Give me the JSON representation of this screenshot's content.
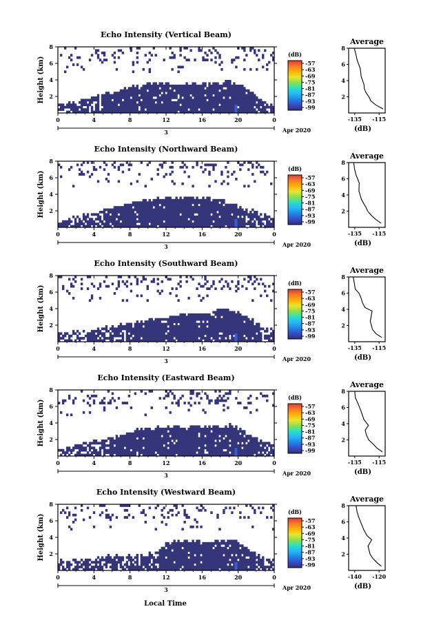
{
  "colors": {
    "echo_fill": "#35357a",
    "echo_highlight": "#3b5bd6",
    "colorbar": [
      "#323278",
      "#3a4ac8",
      "#1e88e5",
      "#29b6f6",
      "#26e0c8",
      "#8be04e",
      "#e6e632",
      "#ffb300",
      "#f57c2a",
      "#e53935"
    ]
  },
  "x_axis_label": "Local Time",
  "panels": [
    {
      "title": "Echo Intensity (Vertical Beam)",
      "ylabel": "Height (km)",
      "date_label": "Apr 2020",
      "x_day_label": "3",
      "x_ticks": [
        "0",
        "4",
        "8",
        "12",
        "16",
        "20",
        "0"
      ],
      "y_ticks": [
        "2",
        "4",
        "6",
        "8"
      ],
      "cb_unit": "(dB)",
      "cb_ticks": [
        "-57",
        "-63",
        "-69",
        "-75",
        "-81",
        "-87",
        "-93",
        "-99"
      ],
      "avg": {
        "title": "Average",
        "xlabel": "(dB)",
        "x_ticks": [
          "-135",
          "-115"
        ],
        "y_ticks": [
          "2",
          "4",
          "6",
          "8"
        ]
      }
    },
    {
      "title": "Echo Intensity (Northward Beam)",
      "ylabel": "Height (km)",
      "date_label": "Apr 2020",
      "x_day_label": "3",
      "x_ticks": [
        "0",
        "4",
        "8",
        "12",
        "16",
        "20",
        "0"
      ],
      "y_ticks": [
        "2",
        "4",
        "6",
        "8"
      ],
      "cb_unit": "(dB)",
      "cb_ticks": [
        "-57",
        "-63",
        "-69",
        "-75",
        "-81",
        "-87",
        "-93",
        "-99"
      ],
      "avg": {
        "title": "Average",
        "xlabel": "(dB)",
        "x_ticks": [
          "-135",
          "-115"
        ],
        "y_ticks": [
          "2",
          "4",
          "6",
          "8"
        ]
      }
    },
    {
      "title": "Echo Intensity (Southward Beam)",
      "ylabel": "Height (km)",
      "date_label": "Apr 2020",
      "x_day_label": "3",
      "x_ticks": [
        "0",
        "4",
        "8",
        "12",
        "16",
        "20",
        "0"
      ],
      "y_ticks": [
        "2",
        "4",
        "6",
        "8"
      ],
      "cb_unit": "(dB)",
      "cb_ticks": [
        "-57",
        "-63",
        "-69",
        "-75",
        "-81",
        "-87",
        "-93",
        "-99"
      ],
      "avg": {
        "title": "Average",
        "xlabel": "(dB)",
        "x_ticks": [
          "-135",
          "-115"
        ],
        "y_ticks": [
          "2",
          "4",
          "6",
          "8"
        ]
      }
    },
    {
      "title": "Echo Intensity (Eastward Beam)",
      "ylabel": "Height (km)",
      "date_label": "Apr 2020",
      "x_day_label": "3",
      "x_ticks": [
        "0",
        "4",
        "8",
        "12",
        "16",
        "20",
        "0"
      ],
      "y_ticks": [
        "2",
        "4",
        "6",
        "8"
      ],
      "cb_unit": "(dB)",
      "cb_ticks": [
        "-57",
        "-63",
        "-69",
        "-75",
        "-81",
        "-87",
        "-93",
        "-99"
      ],
      "avg": {
        "title": "Average",
        "xlabel": "(dB)",
        "x_ticks": [
          "-135",
          "-115"
        ],
        "y_ticks": [
          "2",
          "4",
          "6",
          "8"
        ]
      }
    },
    {
      "title": "Echo Intensity (Westward Beam)",
      "ylabel": "Height (km)",
      "date_label": "Apr 2020",
      "x_day_label": "3",
      "x_ticks": [
        "0",
        "4",
        "8",
        "12",
        "16",
        "20",
        "0"
      ],
      "y_ticks": [
        "2",
        "4",
        "6",
        "8"
      ],
      "cb_unit": "(dB)",
      "cb_ticks": [
        "-57",
        "-63",
        "-69",
        "-75",
        "-81",
        "-87",
        "-93",
        "-99"
      ],
      "avg": {
        "title": "Average",
        "xlabel": "(dB)",
        "x_ticks": [
          "-140",
          "-120"
        ],
        "y_ticks": [
          "2",
          "4",
          "6",
          "8"
        ]
      }
    }
  ],
  "chart_data": [
    {
      "type": "heatmap",
      "title": "Echo Intensity (Vertical Beam)",
      "xlabel": "",
      "ylabel": "Height (km)",
      "xlim": [
        0,
        24
      ],
      "ylim": [
        0,
        8
      ],
      "colorbar": {
        "unit": "(dB)",
        "range": [
          -99,
          -57
        ]
      },
      "echo_top_km": [
        [
          0,
          1.2
        ],
        [
          1,
          1.3
        ],
        [
          2,
          1.4
        ],
        [
          3,
          1.8
        ],
        [
          4,
          2.0
        ],
        [
          5,
          2.4
        ],
        [
          6,
          2.6
        ],
        [
          7,
          2.8
        ],
        [
          8,
          3.2
        ],
        [
          9,
          3.4
        ],
        [
          10,
          3.5
        ],
        [
          11,
          3.6
        ],
        [
          12,
          3.6
        ],
        [
          13,
          3.6
        ],
        [
          14,
          3.6
        ],
        [
          15,
          3.6
        ],
        [
          16,
          3.6
        ],
        [
          17,
          3.6
        ],
        [
          18,
          3.7
        ],
        [
          19,
          3.8
        ],
        [
          20,
          3.6
        ],
        [
          21,
          3.0
        ],
        [
          22,
          2.0
        ],
        [
          23,
          1.5
        ],
        [
          24,
          1.3
        ]
      ]
    },
    {
      "type": "line",
      "title": "Average",
      "xlabel": "(dB)",
      "ylabel": "",
      "xlim": [
        -140,
        -110
      ],
      "ylim": [
        0,
        8
      ],
      "series": [
        {
          "x": [
            -112,
            -118,
            -122,
            -124,
            -126,
            -127,
            -128,
            -130,
            -131,
            -133,
            -134,
            -135
          ],
          "y": [
            0.5,
            1.0,
            1.5,
            2.0,
            2.5,
            3.0,
            3.5,
            4.5,
            5.5,
            6.5,
            7.2,
            8.0
          ]
        }
      ]
    },
    {
      "type": "heatmap",
      "title": "Echo Intensity (Northward Beam)",
      "xlabel": "",
      "ylabel": "Height (km)",
      "xlim": [
        0,
        24
      ],
      "ylim": [
        0,
        8
      ],
      "colorbar": {
        "unit": "(dB)",
        "range": [
          -99,
          -57
        ]
      },
      "echo_top_km": [
        [
          0,
          1.0
        ],
        [
          1,
          1.2
        ],
        [
          2,
          1.3
        ],
        [
          3,
          1.6
        ],
        [
          4,
          1.8
        ],
        [
          5,
          2.0
        ],
        [
          6,
          2.3
        ],
        [
          7,
          2.6
        ],
        [
          8,
          3.0
        ],
        [
          9,
          3.2
        ],
        [
          10,
          3.4
        ],
        [
          11,
          3.5
        ],
        [
          12,
          3.5
        ],
        [
          13,
          3.5
        ],
        [
          14,
          3.5
        ],
        [
          15,
          3.6
        ],
        [
          16,
          3.6
        ],
        [
          17,
          3.6
        ],
        [
          18,
          3.4
        ],
        [
          19,
          3.0
        ],
        [
          20,
          2.6
        ],
        [
          21,
          2.2
        ],
        [
          22,
          2.0
        ],
        [
          23,
          1.6
        ],
        [
          24,
          1.4
        ]
      ]
    },
    {
      "type": "line",
      "title": "Average",
      "xlabel": "(dB)",
      "ylabel": "",
      "xlim": [
        -140,
        -110
      ],
      "ylim": [
        0,
        8
      ],
      "series": [
        {
          "x": [
            -113,
            -118,
            -121,
            -124,
            -126,
            -128,
            -129,
            -131,
            -132,
            -134,
            -135,
            -136
          ],
          "y": [
            0.5,
            1.0,
            1.5,
            2.0,
            2.5,
            3.0,
            3.5,
            4.5,
            5.5,
            6.5,
            7.2,
            8.0
          ]
        }
      ]
    },
    {
      "type": "heatmap",
      "title": "Echo Intensity (Southward Beam)",
      "xlabel": "",
      "ylabel": "Height (km)",
      "xlim": [
        0,
        24
      ],
      "ylim": [
        0,
        8
      ],
      "colorbar": {
        "unit": "(dB)",
        "range": [
          -99,
          -57
        ]
      },
      "echo_top_km": [
        [
          0,
          1.0
        ],
        [
          1,
          1.0
        ],
        [
          2,
          1.2
        ],
        [
          3,
          1.4
        ],
        [
          4,
          1.6
        ],
        [
          5,
          1.8
        ],
        [
          6,
          2.0
        ],
        [
          7,
          2.0
        ],
        [
          8,
          2.2
        ],
        [
          9,
          2.4
        ],
        [
          10,
          2.6
        ],
        [
          11,
          2.8
        ],
        [
          12,
          3.0
        ],
        [
          13,
          3.2
        ],
        [
          14,
          3.3
        ],
        [
          15,
          3.4
        ],
        [
          16,
          3.5
        ],
        [
          17,
          3.6
        ],
        [
          18,
          3.8
        ],
        [
          19,
          4.0
        ],
        [
          20,
          3.6
        ],
        [
          21,
          3.0
        ],
        [
          22,
          2.4
        ],
        [
          23,
          1.8
        ],
        [
          24,
          1.4
        ]
      ]
    },
    {
      "type": "line",
      "title": "Average",
      "xlabel": "(dB)",
      "ylabel": "",
      "xlim": [
        -140,
        -110
      ],
      "ylim": [
        0,
        8
      ],
      "series": [
        {
          "x": [
            -113,
            -118,
            -120,
            -122,
            -121,
            -126,
            -128,
            -130,
            -132,
            -134,
            -135,
            -136
          ],
          "y": [
            0.5,
            1.0,
            1.5,
            2.5,
            3.8,
            4.2,
            4.8,
            5.5,
            6.0,
            6.5,
            7.2,
            8.0
          ]
        }
      ]
    },
    {
      "type": "heatmap",
      "title": "Echo Intensity (Eastward Beam)",
      "xlabel": "",
      "ylabel": "Height (km)",
      "xlim": [
        0,
        24
      ],
      "ylim": [
        0,
        8
      ],
      "colorbar": {
        "unit": "(dB)",
        "range": [
          -99,
          -57
        ]
      },
      "echo_top_km": [
        [
          0,
          1.0
        ],
        [
          1,
          1.2
        ],
        [
          2,
          1.4
        ],
        [
          3,
          1.6
        ],
        [
          4,
          1.8
        ],
        [
          5,
          2.0
        ],
        [
          6,
          2.2
        ],
        [
          7,
          2.4
        ],
        [
          8,
          2.8
        ],
        [
          9,
          3.2
        ],
        [
          10,
          3.4
        ],
        [
          11,
          3.5
        ],
        [
          12,
          3.5
        ],
        [
          13,
          3.5
        ],
        [
          14,
          3.5
        ],
        [
          15,
          3.5
        ],
        [
          16,
          3.6
        ],
        [
          17,
          3.6
        ],
        [
          18,
          3.6
        ],
        [
          19,
          3.8
        ],
        [
          20,
          3.4
        ],
        [
          21,
          2.8
        ],
        [
          22,
          2.2
        ],
        [
          23,
          1.8
        ],
        [
          24,
          1.6
        ]
      ]
    },
    {
      "type": "line",
      "title": "Average",
      "xlabel": "(dB)",
      "ylabel": "",
      "xlim": [
        -140,
        -110
      ],
      "ylim": [
        0,
        8
      ],
      "series": [
        {
          "x": [
            -112,
            -117,
            -120,
            -123,
            -125,
            -127,
            -124,
            -128,
            -130,
            -132,
            -134,
            -135
          ],
          "y": [
            0.5,
            1.0,
            1.5,
            2.0,
            2.6,
            3.2,
            3.8,
            4.5,
            5.5,
            6.5,
            7.2,
            8.0
          ]
        }
      ]
    },
    {
      "type": "heatmap",
      "title": "Echo Intensity (Westward Beam)",
      "xlabel": "Local Time",
      "ylabel": "Height (km)",
      "xlim": [
        0,
        24
      ],
      "ylim": [
        0,
        8
      ],
      "colorbar": {
        "unit": "(dB)",
        "range": [
          -99,
          -57
        ]
      },
      "echo_top_km": [
        [
          0,
          1.2
        ],
        [
          1,
          1.2
        ],
        [
          2,
          1.4
        ],
        [
          3,
          1.4
        ],
        [
          4,
          1.5
        ],
        [
          5,
          1.6
        ],
        [
          6,
          1.8
        ],
        [
          7,
          1.8
        ],
        [
          8,
          1.9
        ],
        [
          9,
          2.0
        ],
        [
          10,
          2.0
        ],
        [
          11,
          2.2
        ],
        [
          12,
          3.4
        ],
        [
          13,
          3.5
        ],
        [
          14,
          3.5
        ],
        [
          15,
          3.5
        ],
        [
          16,
          3.5
        ],
        [
          17,
          3.6
        ],
        [
          18,
          3.6
        ],
        [
          19,
          3.8
        ],
        [
          20,
          3.4
        ],
        [
          21,
          2.6
        ],
        [
          22,
          2.0
        ],
        [
          23,
          1.6
        ],
        [
          24,
          1.4
        ]
      ]
    },
    {
      "type": "line",
      "title": "Average",
      "xlabel": "(dB)",
      "ylabel": "",
      "xlim": [
        -145,
        -115
      ],
      "ylim": [
        0,
        8
      ],
      "series": [
        {
          "x": [
            -118,
            -122,
            -125,
            -127,
            -129,
            -126,
            -130,
            -132,
            -134,
            -136,
            -138,
            -139
          ],
          "y": [
            0.5,
            1.0,
            1.5,
            2.0,
            3.0,
            3.8,
            4.3,
            5.0,
            5.8,
            6.5,
            7.2,
            8.0
          ]
        }
      ]
    }
  ]
}
